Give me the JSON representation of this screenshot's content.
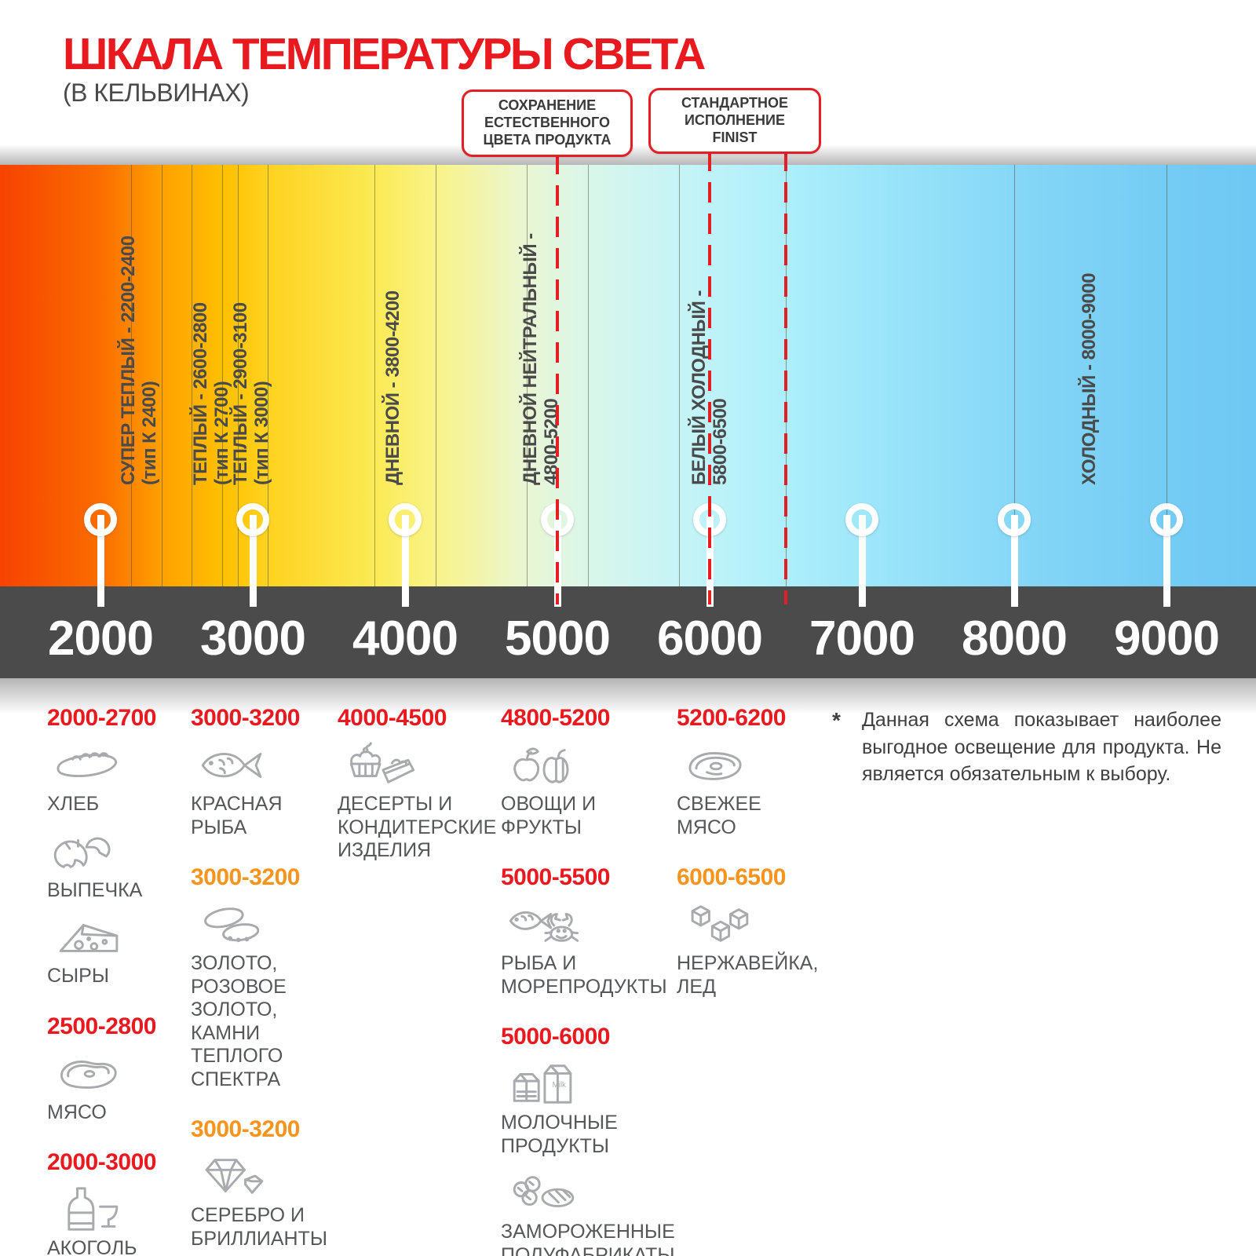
{
  "title": "ШКАЛА ТЕМПЕРАТУРЫ СВЕТА",
  "subtitle": "(В КЕЛЬВИНАХ)",
  "callouts": {
    "natural_color": {
      "text": "СОХРАНЕНИЕ\nЕСТЕСТВЕННОГО\nЦВЕТА ПРОДУКТА",
      "kelvin": [
        5000
      ]
    },
    "finist_standard": {
      "text": "СТАНДАРТНОЕ\nИСПОЛНЕНИЕ\nFINIST",
      "kelvin": [
        6000,
        6500
      ]
    }
  },
  "colors": {
    "accent_red": "#e8191f",
    "accent_orange": "#f7941d",
    "axis_bar_gray": "#4b4b4b",
    "icon_gray": "#a8aaad",
    "dashed_leader_red": "#e31e24"
  },
  "scale": {
    "unit": "K",
    "min": 2000,
    "max": 9000,
    "ticks": [
      {
        "kelvin": 2000,
        "label": "2000"
      },
      {
        "kelvin": 3000,
        "label": "3000"
      },
      {
        "kelvin": 4000,
        "label": "4000"
      },
      {
        "kelvin": 5000,
        "label": "5000"
      },
      {
        "kelvin": 6000,
        "label": "6000"
      },
      {
        "kelvin": 7000,
        "label": "7000"
      },
      {
        "kelvin": 8000,
        "label": "8000"
      },
      {
        "kelvin": 9000,
        "label": "9000"
      }
    ],
    "boundaries_kelvin": [
      2200,
      2400,
      2600,
      2800,
      2900,
      3100,
      3800,
      4200,
      4800,
      5200,
      5800,
      6500,
      8000,
      9000
    ],
    "range_labels": [
      {
        "text": "СУПЕР ТЕПЛЫЙ - 2200-2400",
        "sub": "(тип К 2400)"
      },
      {
        "text": "ТЕПЛЫЙ - 2600-2800",
        "sub": "(тип К 2700)"
      },
      {
        "text": "ТЕПЛЫЙ - 2900-3100",
        "sub": "(тип К 3000)"
      },
      {
        "text": "ДНЕВНОЙ - 3800-4200",
        "sub": ""
      },
      {
        "text": "ДНЕВНОЙ НЕЙТРАЛЬНЫЙ -",
        "sub": "4800-5200"
      },
      {
        "text": "БЕЛЫЙ ХОЛОДНЫЙ -",
        "sub": "5800-6500"
      },
      {
        "text": "ХОЛОДНЫЙ - 8000-9000",
        "sub": ""
      }
    ]
  },
  "legend": {
    "columns": [
      {
        "groups": [
          {
            "range": "2000-2700",
            "color": "red",
            "items": [
              {
                "icon": "bread",
                "label": "ХЛЕБ"
              },
              {
                "icon": "croissant",
                "label": "ВЫПЕЧКА"
              },
              {
                "icon": "cheese",
                "label": "СЫРЫ"
              }
            ]
          },
          {
            "range": "2500-2800",
            "color": "red",
            "items": [
              {
                "icon": "meat",
                "label": "МЯСО"
              }
            ]
          },
          {
            "range": "2000-3000",
            "color": "red",
            "items": [
              {
                "icon": "alcohol",
                "label": "АКОГОЛЬ"
              }
            ]
          }
        ]
      },
      {
        "groups": [
          {
            "range": "3000-3200",
            "color": "red",
            "items": [
              {
                "icon": "fish",
                "label": "КРАСНАЯ\nРЫБА"
              }
            ]
          },
          {
            "range": "3000-3200",
            "color": "orange",
            "items": [
              {
                "icon": "rings",
                "label": "ЗОЛОТО,\nРОЗОВОЕ ЗОЛОТО,\nКАМНИ ТЕПЛОГО\nСПЕКТРА"
              }
            ]
          },
          {
            "range": "3000-3200",
            "color": "orange",
            "items": [
              {
                "icon": "diamond",
                "label": "СЕРЕБРО И\nБРИЛЛИАНТЫ"
              }
            ]
          }
        ]
      },
      {
        "groups": [
          {
            "range": "4000-4500",
            "color": "red",
            "items": [
              {
                "icon": "dessert",
                "label": "ДЕСЕРТЫ И\nКОНДИТЕРСКИЕ\nИЗДЕЛИЯ"
              }
            ]
          }
        ]
      },
      {
        "groups": [
          {
            "range": "4800-5200",
            "color": "red",
            "items": [
              {
                "icon": "produce",
                "label": "ОВОЩИ И\nФРУКТЫ"
              }
            ]
          },
          {
            "range": "5000-5500",
            "color": "red",
            "items": [
              {
                "icon": "seafood",
                "label": "РЫБА И\nМОРЕПРОДУКТЫ"
              }
            ]
          },
          {
            "range": "5000-6000",
            "color": "red",
            "items": [
              {
                "icon": "dairy",
                "label": "МОЛОЧНЫЕ ПРОДУКТЫ"
              },
              {
                "icon": "frozen",
                "label": "ЗАМОРОЖЕННЫЕ\nПОЛУФАБРИКАТЫ"
              }
            ]
          }
        ]
      },
      {
        "groups": [
          {
            "range": "5200-6200",
            "color": "red",
            "items": [
              {
                "icon": "steak",
                "label": "СВЕЖЕЕ\nМЯСО"
              }
            ]
          },
          {
            "range": "6000-6500",
            "color": "orange",
            "items": [
              {
                "icon": "ice",
                "label": "НЕРЖАВЕЙКА,\nЛЕД"
              }
            ]
          }
        ]
      }
    ]
  },
  "footnote": {
    "marker": "*",
    "text": "Данная схема показывает наиболее выгодное освещение для продукта. Не является обязательным к выбору."
  }
}
